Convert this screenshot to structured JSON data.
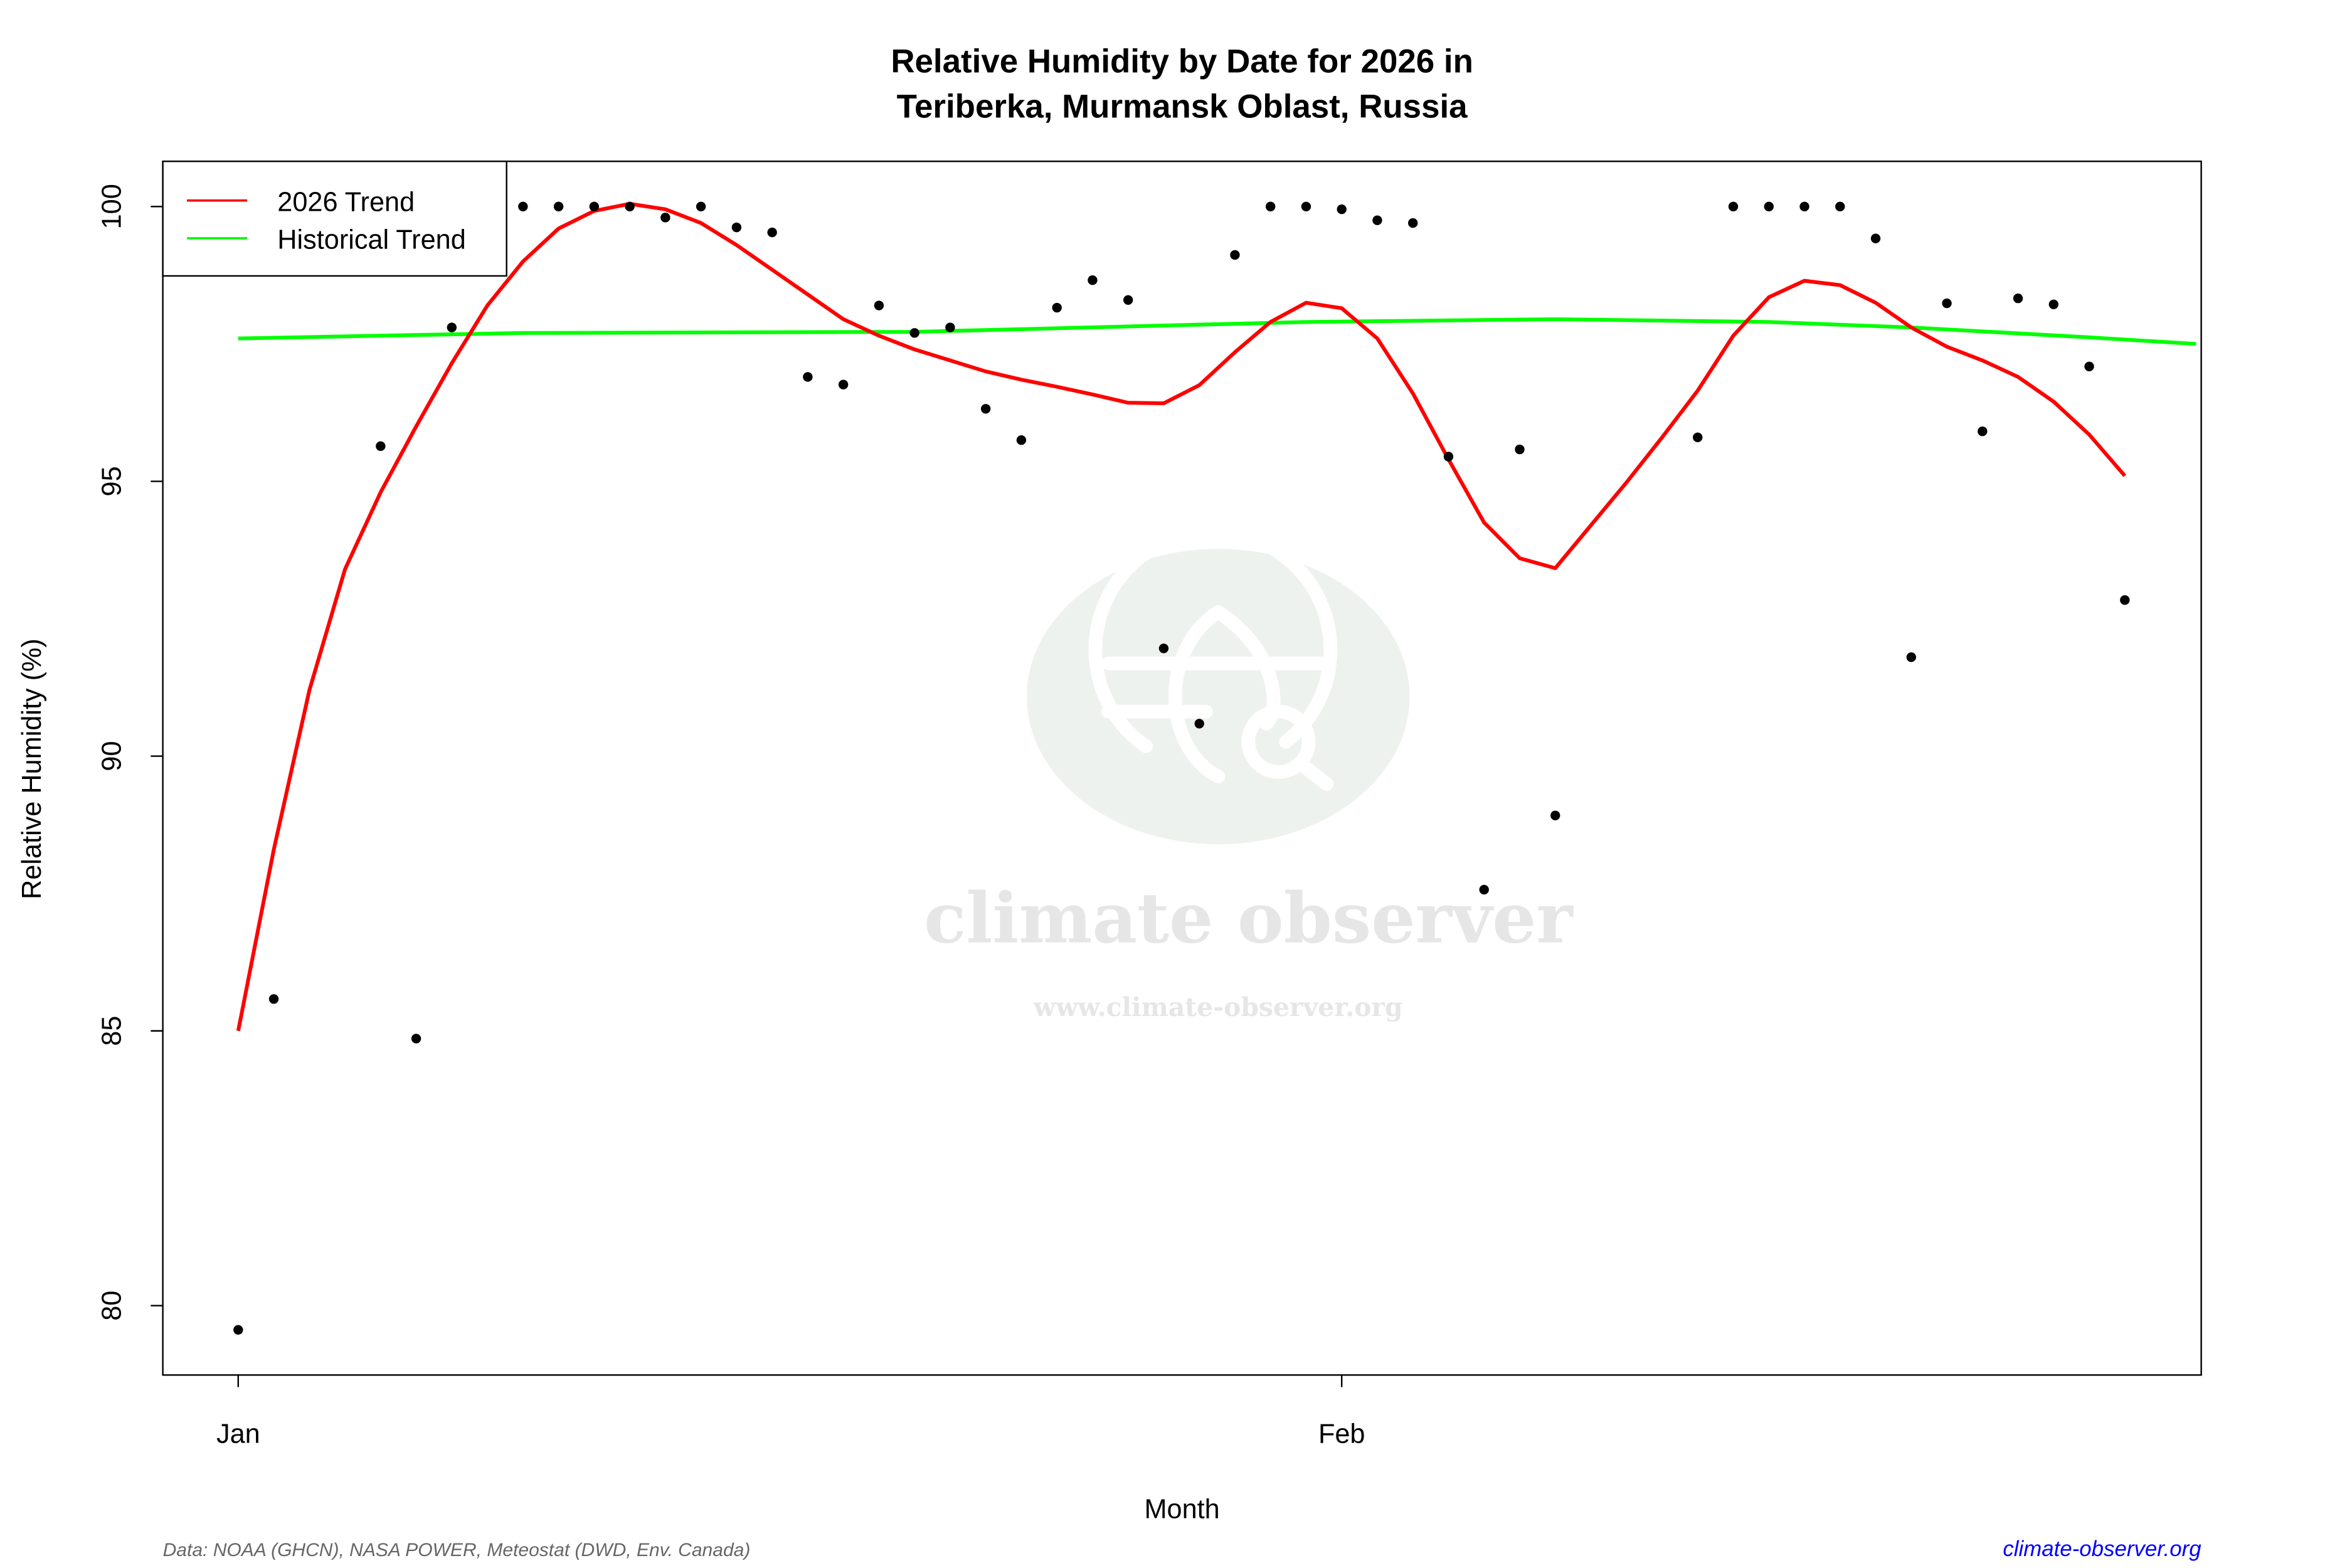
{
  "chart_data": {
    "type": "scatter",
    "title": "Relative Humidity by Date for 2026 in",
    "subtitle": "Teriberka, Murmansk Oblast, Russia",
    "xlabel": "Month",
    "ylabel": "Relative Humidity (%)",
    "ylim": [
      78.75,
      100.9
    ],
    "xlim": [
      "2025-12-30",
      "2026-02-25"
    ],
    "y_ticks": [
      "80",
      "85",
      "90",
      "95",
      "100"
    ],
    "x_ticks": [
      {
        "date": "2026-01-01",
        "label": "Jan"
      },
      {
        "date": "2026-02-01",
        "label": "Feb"
      }
    ],
    "grid": false,
    "legend_position": "top-left",
    "legend": [
      {
        "label": "2026 Trend",
        "color": "#ff0000"
      },
      {
        "label": "Historical Trend",
        "color": "#00ff00"
      }
    ],
    "points": {
      "color": "#000000",
      "x": [
        "2026-01-01",
        "2026-01-02",
        "2026-01-05",
        "2026-01-06",
        "2026-01-07",
        "2026-01-09",
        "2026-01-10",
        "2026-01-11",
        "2026-01-12",
        "2026-01-13",
        "2026-01-14",
        "2026-01-15",
        "2026-01-16",
        "2026-01-17",
        "2026-01-18",
        "2026-01-19",
        "2026-01-20",
        "2026-01-21",
        "2026-01-22",
        "2026-01-23",
        "2026-01-24",
        "2026-01-25",
        "2026-01-26",
        "2026-01-27",
        "2026-01-28",
        "2026-01-29",
        "2026-01-30",
        "2026-01-31",
        "2026-02-01",
        "2026-02-02",
        "2026-02-03",
        "2026-02-04",
        "2026-02-05",
        "2026-02-06",
        "2026-02-07",
        "2026-02-11",
        "2026-02-12",
        "2026-02-13",
        "2026-02-14",
        "2026-02-15",
        "2026-02-16",
        "2026-02-17",
        "2026-02-18",
        "2026-02-19",
        "2026-02-20",
        "2026-02-21",
        "2026-02-22",
        "2026-02-23"
      ],
      "y": [
        79.56,
        85.58,
        95.64,
        84.86,
        97.8,
        100,
        100,
        100,
        100,
        99.8,
        100,
        99.62,
        99.53,
        96.9,
        96.76,
        98.2,
        97.7,
        97.8,
        96.32,
        95.75,
        98.16,
        98.66,
        98.3,
        91.96,
        90.59,
        99.12,
        100,
        100,
        99.95,
        99.75,
        99.7,
        95.45,
        87.57,
        95.58,
        88.92,
        95.8,
        100,
        100,
        100,
        100,
        99.42,
        91.8,
        98.24,
        95.91,
        98.33,
        98.22,
        97.09,
        92.84
      ]
    },
    "series": [
      {
        "name": "2026 Trend",
        "color": "#ff0000",
        "start": "2026-01-01",
        "values": [
          85.0,
          88.3,
          91.2,
          93.4,
          94.8,
          96.0,
          97.15,
          98.2,
          99.0,
          99.6,
          99.92,
          100.05,
          99.95,
          99.7,
          99.3,
          98.85,
          98.4,
          97.95,
          97.65,
          97.4,
          97.2,
          97.0,
          96.85,
          96.72,
          96.58,
          96.43,
          96.42,
          96.75,
          97.35,
          97.9,
          98.25,
          98.15,
          97.6,
          96.6,
          95.4,
          94.25,
          93.6,
          93.42,
          94.2,
          94.98,
          95.8,
          96.65,
          97.65,
          98.35,
          98.65,
          98.57,
          98.25,
          97.8,
          97.45,
          97.2,
          96.9,
          96.45,
          95.85,
          95.1
        ]
      },
      {
        "name": "Historical Trend",
        "color": "#00ff00",
        "x": [
          "2026-01-01",
          "2026-01-09",
          "2026-01-20",
          "2026-01-31",
          "2026-02-07",
          "2026-02-13",
          "2026-02-17",
          "2026-02-22",
          "2026-02-25"
        ],
        "values": [
          97.6,
          97.7,
          97.72,
          97.9,
          97.95,
          97.9,
          97.8,
          97.62,
          97.5
        ]
      }
    ]
  },
  "watermark": {
    "brand": "climate observer",
    "url": "www.climate-observer.org"
  },
  "footer": {
    "source": "Data: NOAA (GHCN), NASA POWER, Meteostat (DWD, Env. Canada)",
    "site": "climate-observer.org",
    "site_color": "#0000ff"
  }
}
